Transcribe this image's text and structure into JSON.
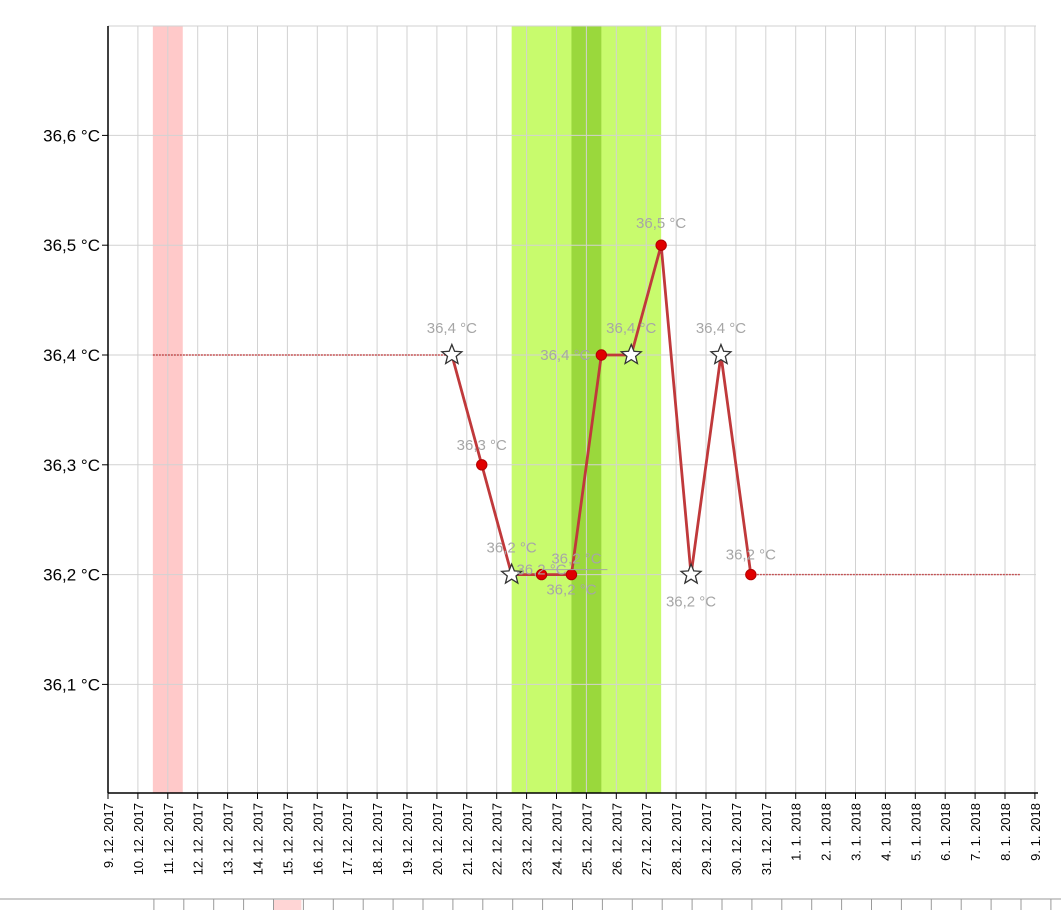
{
  "chart_data": {
    "type": "line",
    "title": "",
    "xlabel": "",
    "ylabel": "",
    "unit": "°C",
    "ylim": [
      36.0,
      36.7
    ],
    "yticks": [
      "36,1 °C",
      "36,2 °C",
      "36,3 °C",
      "36,4 °C",
      "36,5 °C",
      "36,6 °C"
    ],
    "x": [
      "9. 12. 2017",
      "10. 12. 2017",
      "11. 12. 2017",
      "12. 12. 2017",
      "13. 12. 2017",
      "14. 12. 2017",
      "15. 12. 2017",
      "16. 12. 2017",
      "17. 12. 2017",
      "18. 12. 2017",
      "19. 12. 2017",
      "20. 12. 2017",
      "21. 12. 2017",
      "22. 12. 2017",
      "23. 12. 2017",
      "24. 12. 2017",
      "25. 12. 2017",
      "26. 12. 2017",
      "27. 12. 2017",
      "28. 12. 2017",
      "29. 12. 2017",
      "30. 12. 2017",
      "31. 12. 2017",
      "1. 1. 2018",
      "2. 1. 2018",
      "3. 1. 2018",
      "4. 1. 2018",
      "5. 1. 2018",
      "6. 1. 2018",
      "7. 1. 2018",
      "8. 1. 2018",
      "9. 1. 2018"
    ],
    "grid": true,
    "series": [
      {
        "color": "#c0393b",
        "points": [
          {
            "x": "20. 12. 2017",
            "y": 36.4,
            "label": "36,4 °C",
            "marker": "star"
          },
          {
            "x": "21. 12. 2017",
            "y": 36.3,
            "label": "36,3 °C",
            "marker": "dot"
          },
          {
            "x": "22. 12. 2017",
            "y": 36.2,
            "label": "36,2 °C",
            "marker": "star"
          },
          {
            "x": "23. 12. 2017",
            "y": 36.2,
            "label": "36,2 °C",
            "marker": "dot"
          },
          {
            "x": "24. 12. 2017",
            "y": 36.2,
            "label": "36,2 °C",
            "marker": "dot"
          },
          {
            "x": "25. 12. 2017",
            "y": 36.4,
            "label": "36,4 °C",
            "marker": "dot"
          },
          {
            "x": "26. 12. 2017",
            "y": 36.4,
            "label": "36,4 °C",
            "marker": "star"
          },
          {
            "x": "27. 12. 2017",
            "y": 36.5,
            "label": "36,5 °C",
            "marker": "dot"
          },
          {
            "x": "28. 12. 2017",
            "y": 36.2,
            "label": "36,2 °C",
            "marker": "star"
          },
          {
            "x": "29. 12. 2017",
            "y": 36.4,
            "label": "36,4 °C",
            "marker": "star"
          },
          {
            "x": "30. 12. 2017",
            "y": 36.2,
            "label": "36,2 °C",
            "marker": "dot"
          }
        ]
      }
    ],
    "reference_lines": [
      {
        "y": 36.4,
        "from": "10. 12. 2017",
        "to": "20. 12. 2017",
        "color": "#c0393b"
      },
      {
        "y": 36.2,
        "from": "30. 12. 2017",
        "to": "8. 1. 2018",
        "color": "#c0393b"
      }
    ],
    "highlight_bands": [
      {
        "from": "10. 12. 2017",
        "to": "10. 12. 2017",
        "color": "#ffc9c9"
      },
      {
        "from": "22. 12. 2017",
        "to": "26. 12. 2017",
        "color": "#c8fb6d"
      },
      {
        "from": "24. 12. 2017",
        "to": "24. 12. 2017",
        "color": "#9ad83c"
      }
    ],
    "bottom_strip_highlight": {
      "x": "15. 12. 2017",
      "color": "#ffd5d5"
    }
  }
}
